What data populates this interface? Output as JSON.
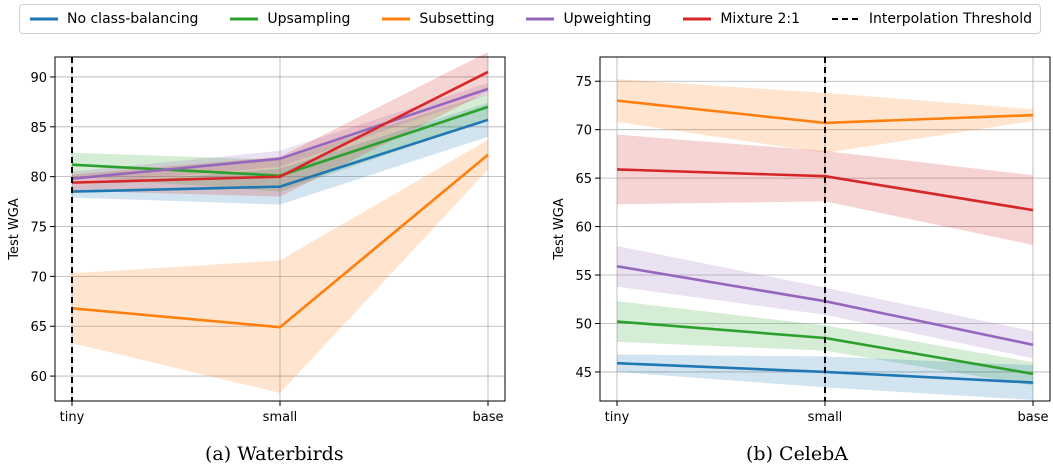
{
  "legend": {
    "series": [
      {
        "label": "No class-balancing",
        "color": "#1f77b4",
        "dash": false
      },
      {
        "label": "Upsampling",
        "color": "#2ca02c",
        "dash": false
      },
      {
        "label": "Subsetting",
        "color": "#ff7f0e",
        "dash": false
      },
      {
        "label": "Upweighting",
        "color": "#9467bd",
        "dash": false
      },
      {
        "label": "Mixture 2:1",
        "color": "#d62728",
        "dash": false
      },
      {
        "label": "Interpolation Threshold",
        "color": "#000000",
        "dash": true
      }
    ]
  },
  "captions": [
    "(a) Waterbirds",
    "(b) CelebA"
  ],
  "chart_data": [
    {
      "type": "line",
      "categories": [
        "tiny",
        "small",
        "base"
      ],
      "ylabel": "Test WGA",
      "ylim": [
        57.5,
        92
      ],
      "yticks": [
        60,
        65,
        70,
        75,
        80,
        85,
        90
      ],
      "grid": true,
      "threshold_at": "tiny",
      "series": [
        {
          "name": "Subsetting",
          "color": "#ff7f0e",
          "values": [
            66.8,
            64.9,
            82.2
          ],
          "lower": [
            63.3,
            58.3,
            80.7
          ],
          "upper": [
            70.3,
            71.6,
            83.7
          ]
        },
        {
          "name": "No class-balancing",
          "color": "#1f77b4",
          "values": [
            78.5,
            79.0,
            85.7
          ],
          "lower": [
            77.9,
            77.2,
            84.0
          ],
          "upper": [
            79.1,
            80.8,
            87.4
          ]
        },
        {
          "name": "Upsampling",
          "color": "#2ca02c",
          "values": [
            81.2,
            80.1,
            87.0
          ],
          "lower": [
            80.0,
            78.5,
            85.7
          ],
          "upper": [
            82.4,
            81.7,
            88.3
          ]
        },
        {
          "name": "Upweighting",
          "color": "#9467bd",
          "values": [
            79.8,
            81.8,
            88.8
          ],
          "lower": [
            79.1,
            81.0,
            88.2
          ],
          "upper": [
            80.5,
            82.6,
            89.4
          ]
        },
        {
          "name": "Mixture 2:1",
          "color": "#d62728",
          "values": [
            79.4,
            80.0,
            90.5
          ],
          "lower": [
            78.6,
            78.0,
            88.5
          ],
          "upper": [
            80.2,
            82.0,
            92.5
          ]
        }
      ]
    },
    {
      "type": "line",
      "categories": [
        "tiny",
        "small",
        "base"
      ],
      "ylabel": "Test WGA",
      "ylim": [
        42,
        77.5
      ],
      "yticks": [
        45,
        50,
        55,
        60,
        65,
        70,
        75
      ],
      "grid": true,
      "threshold_at": "small",
      "series": [
        {
          "name": "Subsetting",
          "color": "#ff7f0e",
          "values": [
            73.0,
            70.7,
            71.5
          ],
          "lower": [
            70.8,
            67.6,
            70.9
          ],
          "upper": [
            75.2,
            73.8,
            72.1
          ]
        },
        {
          "name": "Mixture 2:1",
          "color": "#d62728",
          "values": [
            65.9,
            65.2,
            61.7
          ],
          "lower": [
            62.3,
            62.6,
            58.1
          ],
          "upper": [
            69.5,
            67.8,
            65.3
          ]
        },
        {
          "name": "Upweighting",
          "color": "#9467bd",
          "values": [
            55.9,
            52.3,
            47.8
          ],
          "lower": [
            53.8,
            50.9,
            46.4
          ],
          "upper": [
            58.0,
            53.7,
            49.2
          ]
        },
        {
          "name": "Upsampling",
          "color": "#2ca02c",
          "values": [
            50.2,
            48.5,
            44.8
          ],
          "lower": [
            48.1,
            47.2,
            43.6
          ],
          "upper": [
            52.3,
            49.8,
            46.0
          ]
        },
        {
          "name": "No class-balancing",
          "color": "#1f77b4",
          "values": [
            45.9,
            45.0,
            43.9
          ],
          "lower": [
            45.0,
            43.4,
            42.1
          ],
          "upper": [
            46.8,
            46.6,
            45.7
          ]
        }
      ]
    }
  ]
}
